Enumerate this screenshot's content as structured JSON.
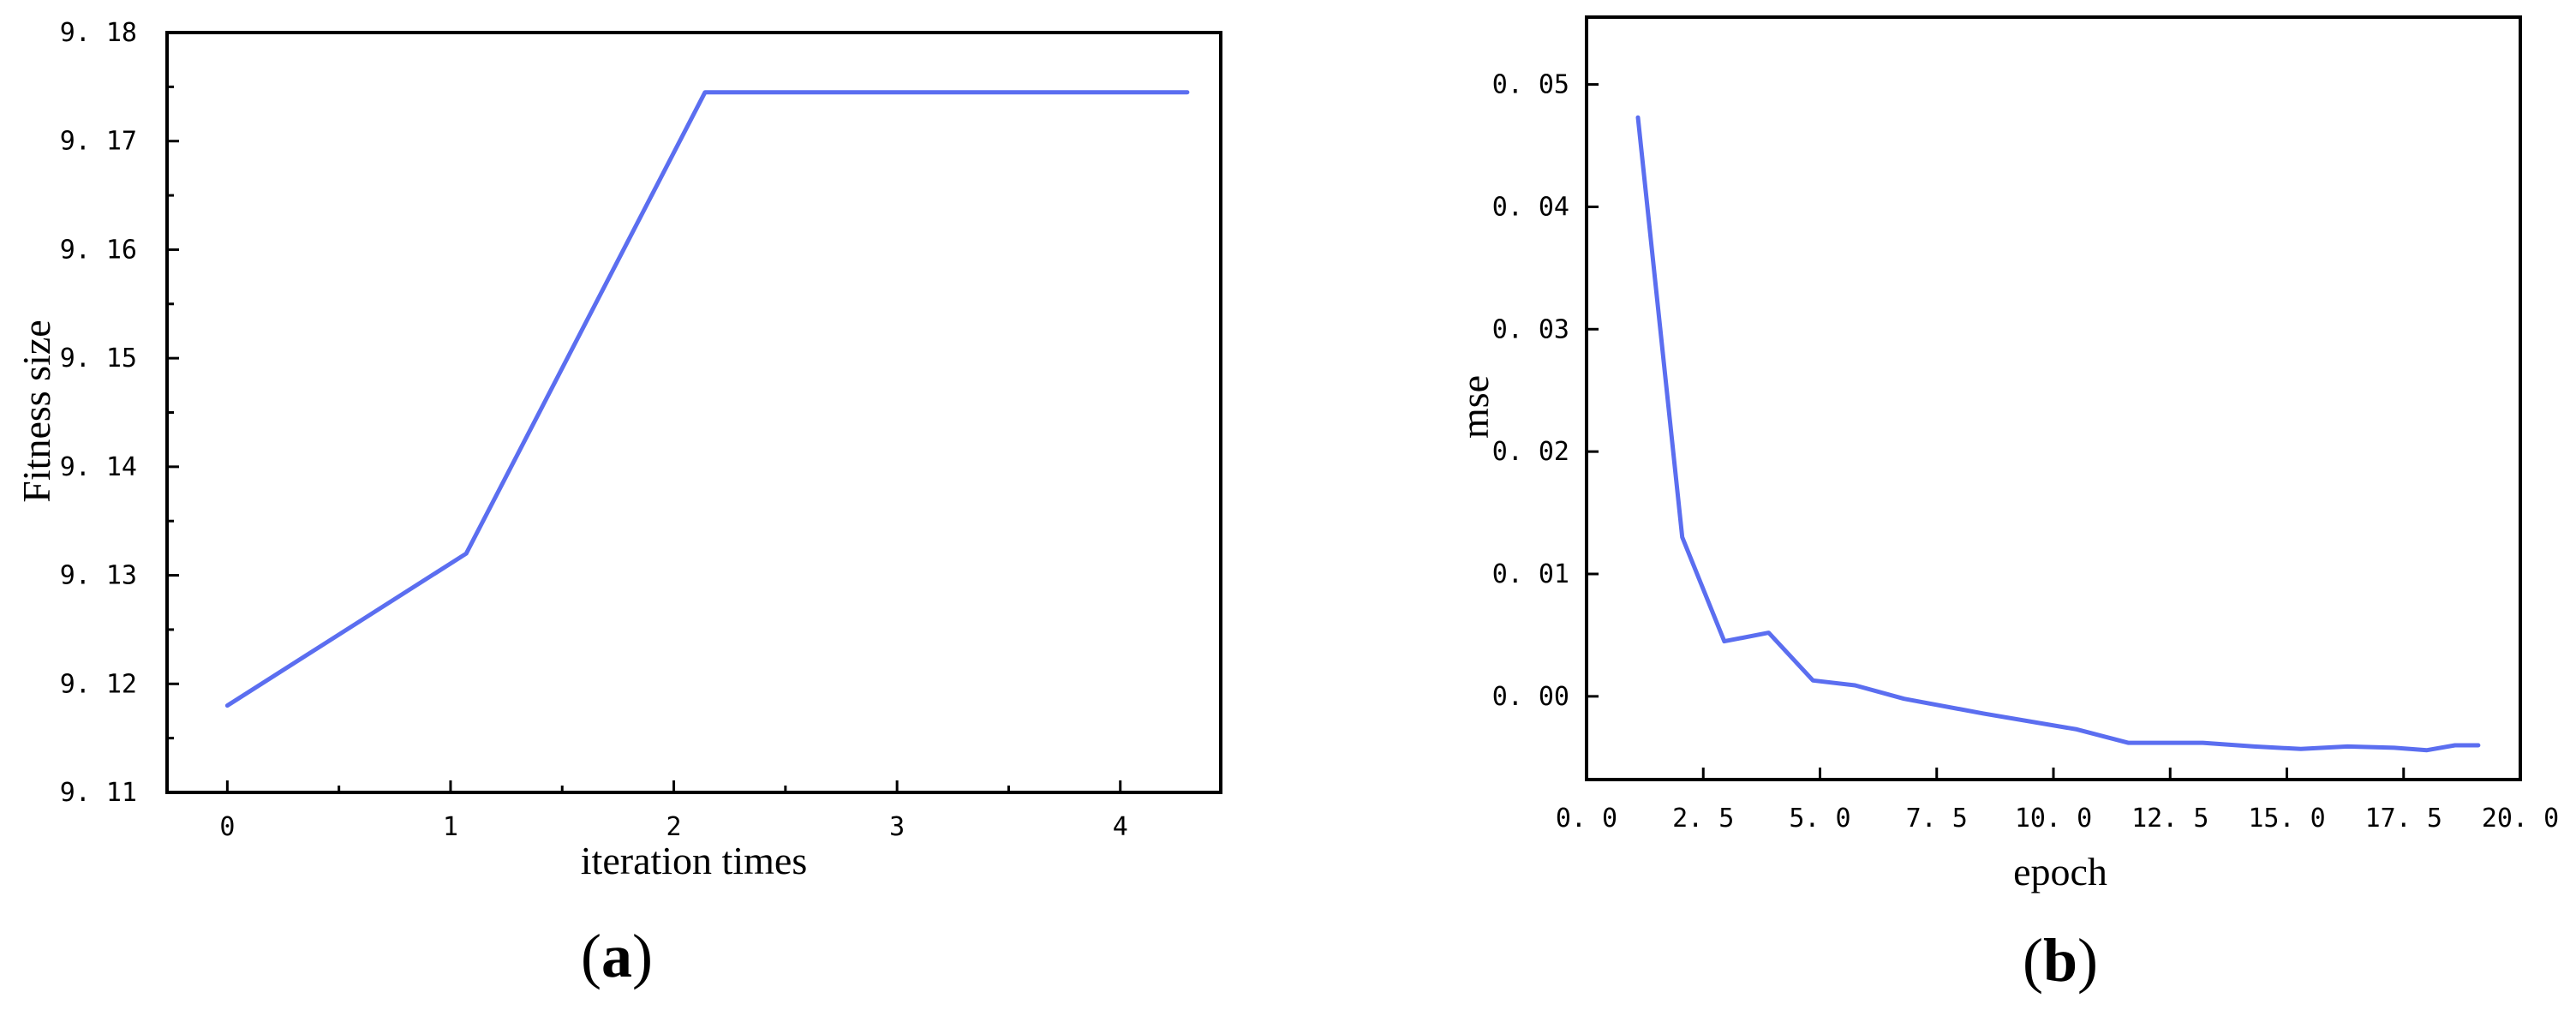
{
  "colors": {
    "line": "#5b6ef0",
    "axis": "#000000"
  },
  "chart_data": [
    {
      "type": "line",
      "panel_label": "a",
      "title": "",
      "xlabel": "iteration times",
      "ylabel": "Fitness size",
      "xlim": [
        -0.27,
        4.45
      ],
      "ylim": [
        9.11,
        9.18
      ],
      "xticks": [
        0,
        1,
        2,
        3,
        4
      ],
      "xtick_labels": [
        "0",
        "1",
        "2",
        "3",
        "4"
      ],
      "yticks": [
        9.11,
        9.12,
        9.13,
        9.14,
        9.15,
        9.16,
        9.17,
        9.18
      ],
      "ytick_labels": [
        "9. 11",
        "9. 12",
        "9. 13",
        "9. 14",
        "9. 15",
        "9. 16",
        "9. 17",
        "9. 18"
      ],
      "grid": false,
      "series": [
        {
          "x": [
            0,
            1.07,
            2.14,
            3.22,
            4.3
          ],
          "values": [
            9.118,
            9.132,
            9.1745,
            9.1745,
            9.1745
          ]
        }
      ]
    },
    {
      "type": "line",
      "panel_label": "b",
      "title": "",
      "xlabel": "epoch",
      "ylabel": "mse",
      "xlim": [
        0,
        20
      ],
      "ylim": [
        -0.0068,
        0.0555
      ],
      "xticks": [
        0,
        2.5,
        5,
        7.5,
        10,
        12.5,
        15,
        17.5,
        20
      ],
      "xtick_labels": [
        "0. 0",
        "2. 5",
        "5. 0",
        "7. 5",
        "10. 0",
        "12. 5",
        "15. 0",
        "17. 5",
        "20. 0"
      ],
      "yticks": [
        0,
        0.01,
        0.02,
        0.03,
        0.04,
        0.05
      ],
      "ytick_labels": [
        "0. 00",
        "0. 01",
        "0. 02",
        "0. 03",
        "0. 04",
        "0. 05"
      ],
      "grid": false,
      "series": [
        {
          "x": [
            1.1,
            2.05,
            2.95,
            3.9,
            4.85,
            5.75,
            6.8,
            8.5,
            10.5,
            11.6,
            13.2,
            14.3,
            15.3,
            16.3,
            17.3,
            18,
            18.6,
            19.1
          ],
          "values": [
            0.0473,
            0.013,
            0.0045,
            0.0052,
            0.0013,
            0.0009,
            -0.0002,
            -0.0014,
            -0.0027,
            -0.0038,
            -0.0038,
            -0.0041,
            -0.0043,
            -0.0041,
            -0.0042,
            -0.0044,
            -0.004,
            -0.004
          ]
        }
      ]
    }
  ]
}
